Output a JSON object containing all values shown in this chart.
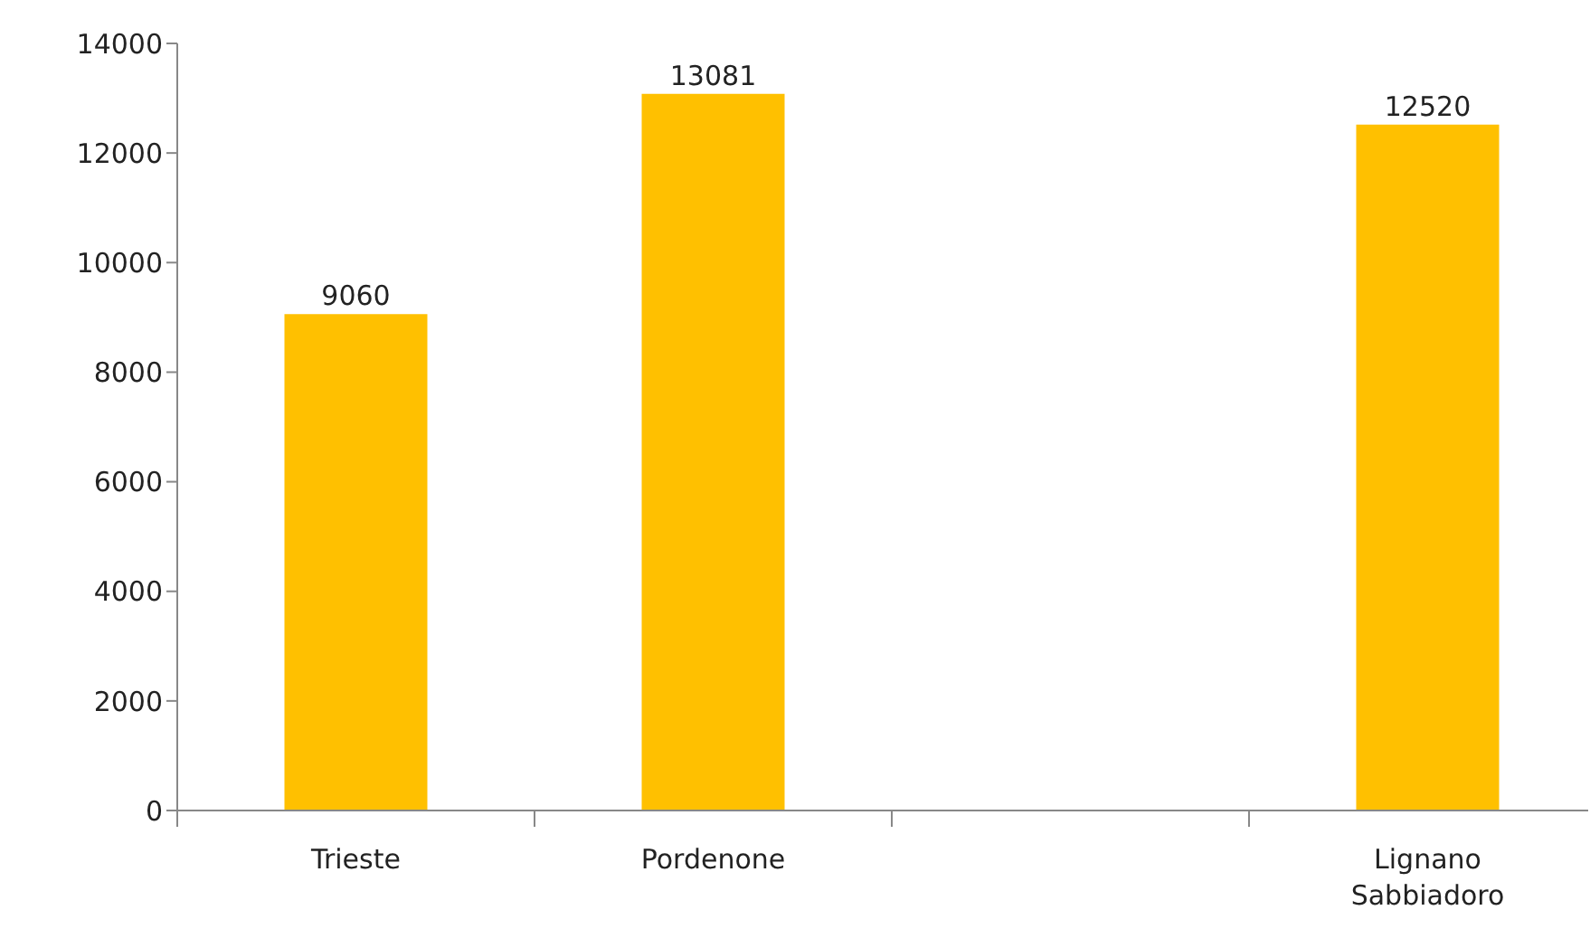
{
  "chart_data": {
    "type": "bar",
    "categories": [
      "Trieste",
      "Pordenone",
      null,
      "Lignano Sabbiadoro"
    ],
    "values": [
      9060,
      13081,
      null,
      12520
    ],
    "color": "#ffc000",
    "ylim": [
      0,
      14000
    ],
    "yticks": [
      0,
      2000,
      4000,
      6000,
      8000,
      10000,
      12000,
      14000
    ],
    "data_labels": true,
    "grid": false
  }
}
